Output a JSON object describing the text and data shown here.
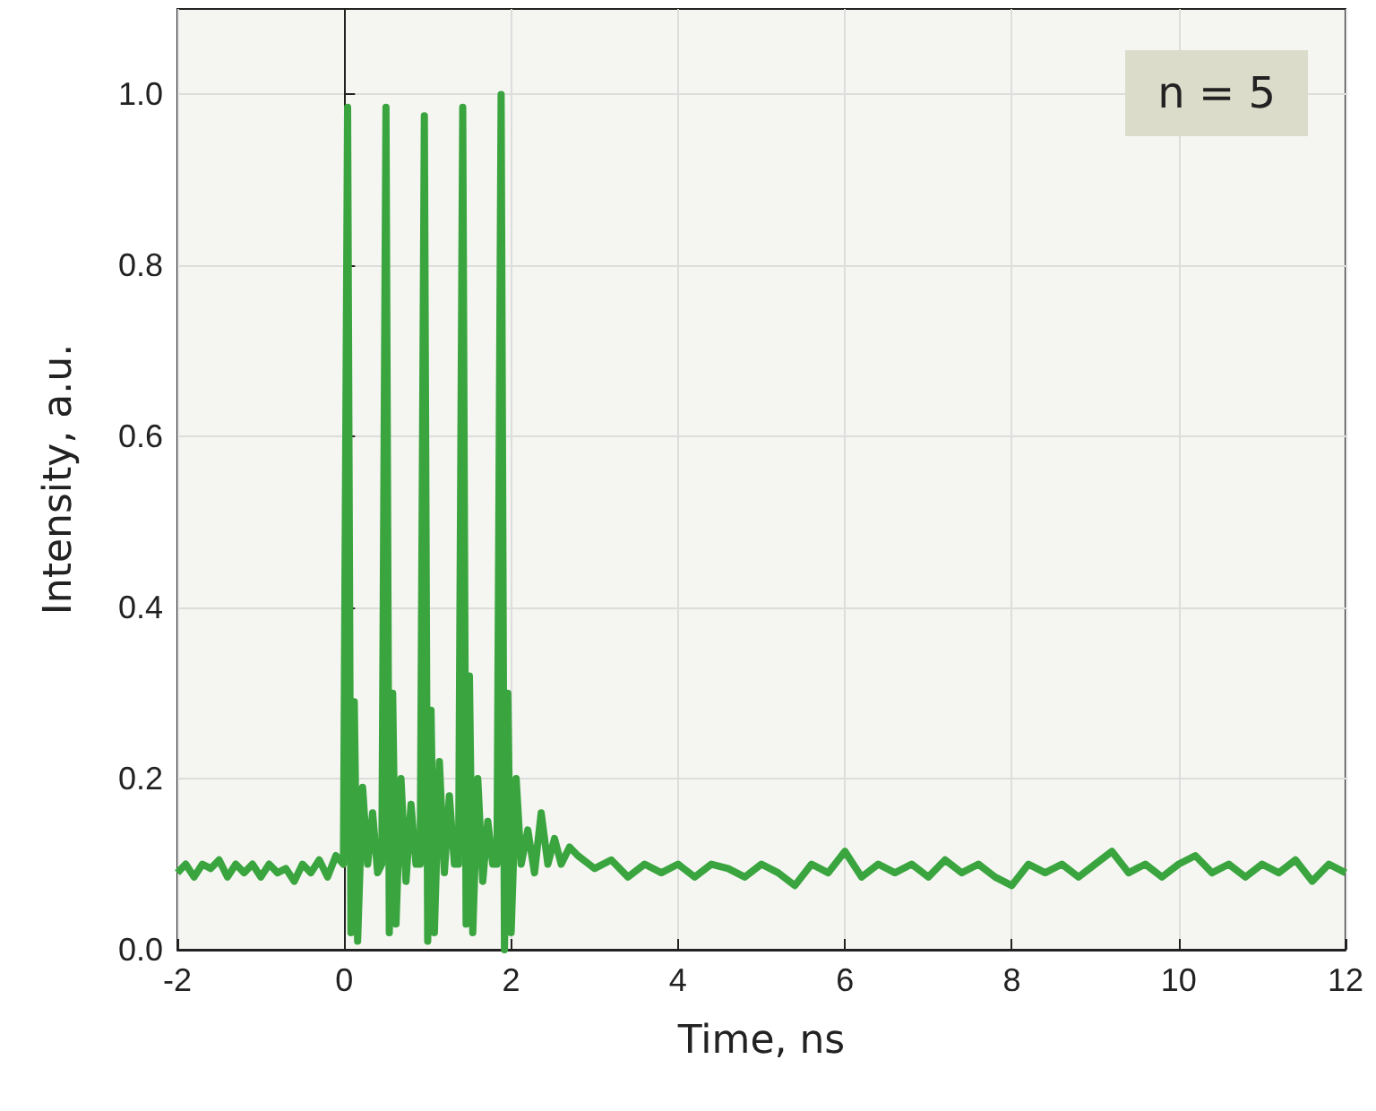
{
  "chart_data": {
    "type": "line",
    "xlabel": "Time, ns",
    "ylabel": "Intensity, a.u.",
    "annotations": [
      "n = 5"
    ],
    "x": [
      -2,
      -1.9,
      -1.8,
      -1.7,
      -1.6,
      -1.5,
      -1.4,
      -1.3,
      -1.2,
      -1.1,
      -1.0,
      -0.9,
      -0.8,
      -0.7,
      -0.6,
      -0.5,
      -0.4,
      -0.3,
      -0.2,
      -0.1,
      -0.01,
      0.04,
      0.08,
      0.12,
      0.16,
      0.22,
      0.28,
      0.34,
      0.4,
      0.45,
      0.5,
      0.54,
      0.58,
      0.62,
      0.68,
      0.74,
      0.8,
      0.86,
      0.91,
      0.96,
      1.0,
      1.04,
      1.08,
      1.14,
      1.2,
      1.26,
      1.32,
      1.37,
      1.42,
      1.46,
      1.5,
      1.54,
      1.6,
      1.66,
      1.72,
      1.78,
      1.83,
      1.88,
      1.92,
      1.96,
      2.0,
      2.06,
      2.12,
      2.2,
      2.28,
      2.36,
      2.44,
      2.52,
      2.6,
      2.7,
      2.8,
      3.0,
      3.2,
      3.4,
      3.6,
      3.8,
      4.0,
      4.2,
      4.4,
      4.6,
      4.8,
      5.0,
      5.2,
      5.4,
      5.6,
      5.8,
      6.0,
      6.2,
      6.4,
      6.6,
      6.8,
      7.0,
      7.2,
      7.4,
      7.6,
      7.8,
      8.0,
      8.2,
      8.4,
      8.6,
      8.8,
      9.0,
      9.2,
      9.4,
      9.6,
      9.8,
      10.0,
      10.2,
      10.4,
      10.6,
      10.8,
      11.0,
      11.2,
      11.4,
      11.6,
      11.8,
      12.0
    ],
    "values": [
      0.09,
      0.1,
      0.085,
      0.1,
      0.095,
      0.105,
      0.085,
      0.1,
      0.09,
      0.1,
      0.085,
      0.1,
      0.09,
      0.095,
      0.08,
      0.1,
      0.09,
      0.105,
      0.085,
      0.11,
      0.1,
      0.985,
      0.02,
      0.29,
      0.01,
      0.19,
      0.1,
      0.16,
      0.09,
      0.1,
      0.985,
      0.02,
      0.3,
      0.03,
      0.2,
      0.08,
      0.17,
      0.1,
      0.1,
      0.975,
      0.01,
      0.28,
      0.02,
      0.22,
      0.09,
      0.18,
      0.1,
      0.1,
      0.985,
      0.03,
      0.32,
      0.02,
      0.2,
      0.08,
      0.15,
      0.1,
      0.1,
      1.0,
      0.0,
      0.3,
      0.02,
      0.2,
      0.1,
      0.14,
      0.09,
      0.16,
      0.1,
      0.13,
      0.1,
      0.12,
      0.11,
      0.095,
      0.105,
      0.085,
      0.1,
      0.09,
      0.1,
      0.085,
      0.1,
      0.095,
      0.085,
      0.1,
      0.09,
      0.075,
      0.1,
      0.09,
      0.115,
      0.085,
      0.1,
      0.09,
      0.1,
      0.085,
      0.105,
      0.09,
      0.1,
      0.085,
      0.075,
      0.1,
      0.09,
      0.1,
      0.085,
      0.1,
      0.115,
      0.09,
      0.1,
      0.085,
      0.1,
      0.11,
      0.09,
      0.1,
      0.085,
      0.1,
      0.09,
      0.105,
      0.08,
      0.1,
      0.09
    ],
    "color": "#3aa53f",
    "xlim": [
      -2,
      12
    ],
    "ylim": [
      0,
      1.1
    ],
    "xticks": [
      -2,
      0,
      2,
      4,
      6,
      8,
      10,
      12
    ],
    "yticks": [
      {
        "value": 0,
        "label": "0.0"
      },
      0.2,
      0.4,
      0.6,
      0.8,
      {
        "value": 1,
        "label": "1.0"
      }
    ],
    "grid": true
  }
}
